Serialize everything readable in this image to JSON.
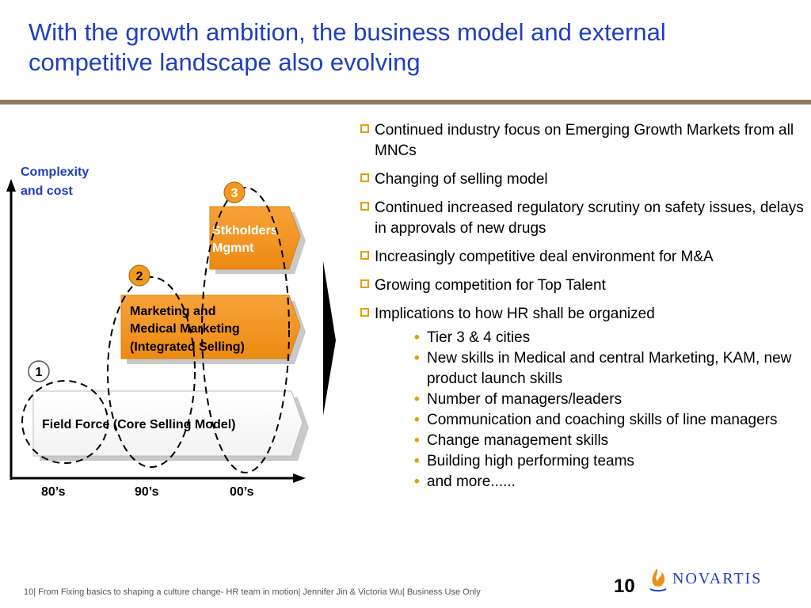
{
  "title": "With the growth ambition, the business model and external competitive landscape also evolving",
  "diagram": {
    "y_axis_label_line1": "Complexity",
    "y_axis_label_line2": "and cost",
    "x_ticks": [
      "80’s",
      "90’s",
      "00’s"
    ],
    "stage1": {
      "number": "1",
      "label": "Field Force (Core Selling Model)"
    },
    "stage2": {
      "number": "2",
      "label_lines": [
        "Marketing and",
        "Medical Marketing",
        "(Integrated Selling)"
      ]
    },
    "stage3": {
      "number": "3",
      "label_lines": [
        "Stkholders",
        "Mgmnt"
      ]
    }
  },
  "bullets": [
    {
      "text": " Continued industry focus on Emerging Growth Markets from all MNCs"
    },
    {
      "text": "Changing of selling model"
    },
    {
      "text": "Continued increased regulatory scrutiny on safety issues, delays in approvals of new drugs"
    },
    {
      "text": "Increasingly competitive deal environment for M&A"
    },
    {
      "text": "Growing competition for Top Talent"
    },
    {
      "text": "Implications to how HR shall be organized"
    }
  ],
  "sub_bullets": [
    "Tier 3 & 4 cities",
    "New skills in Medical and central Marketing, KAM, new product launch skills",
    "Number of managers/leaders",
    "Communication and coaching skills of line managers",
    "Change management skills",
    "Building high performing teams",
    "and more......"
  ],
  "footer": "10| From Fixing basics to shaping a culture change- HR team in motion| Jennifer Jin & Victoria Wu| Business Use Only",
  "page_number": "10",
  "logo_text": "NOVARTIS",
  "colors": {
    "title": "#1f3fbd",
    "accent": "#f29a1f",
    "bullet_box": "#e3a000",
    "rule": "#8b7d5e"
  }
}
